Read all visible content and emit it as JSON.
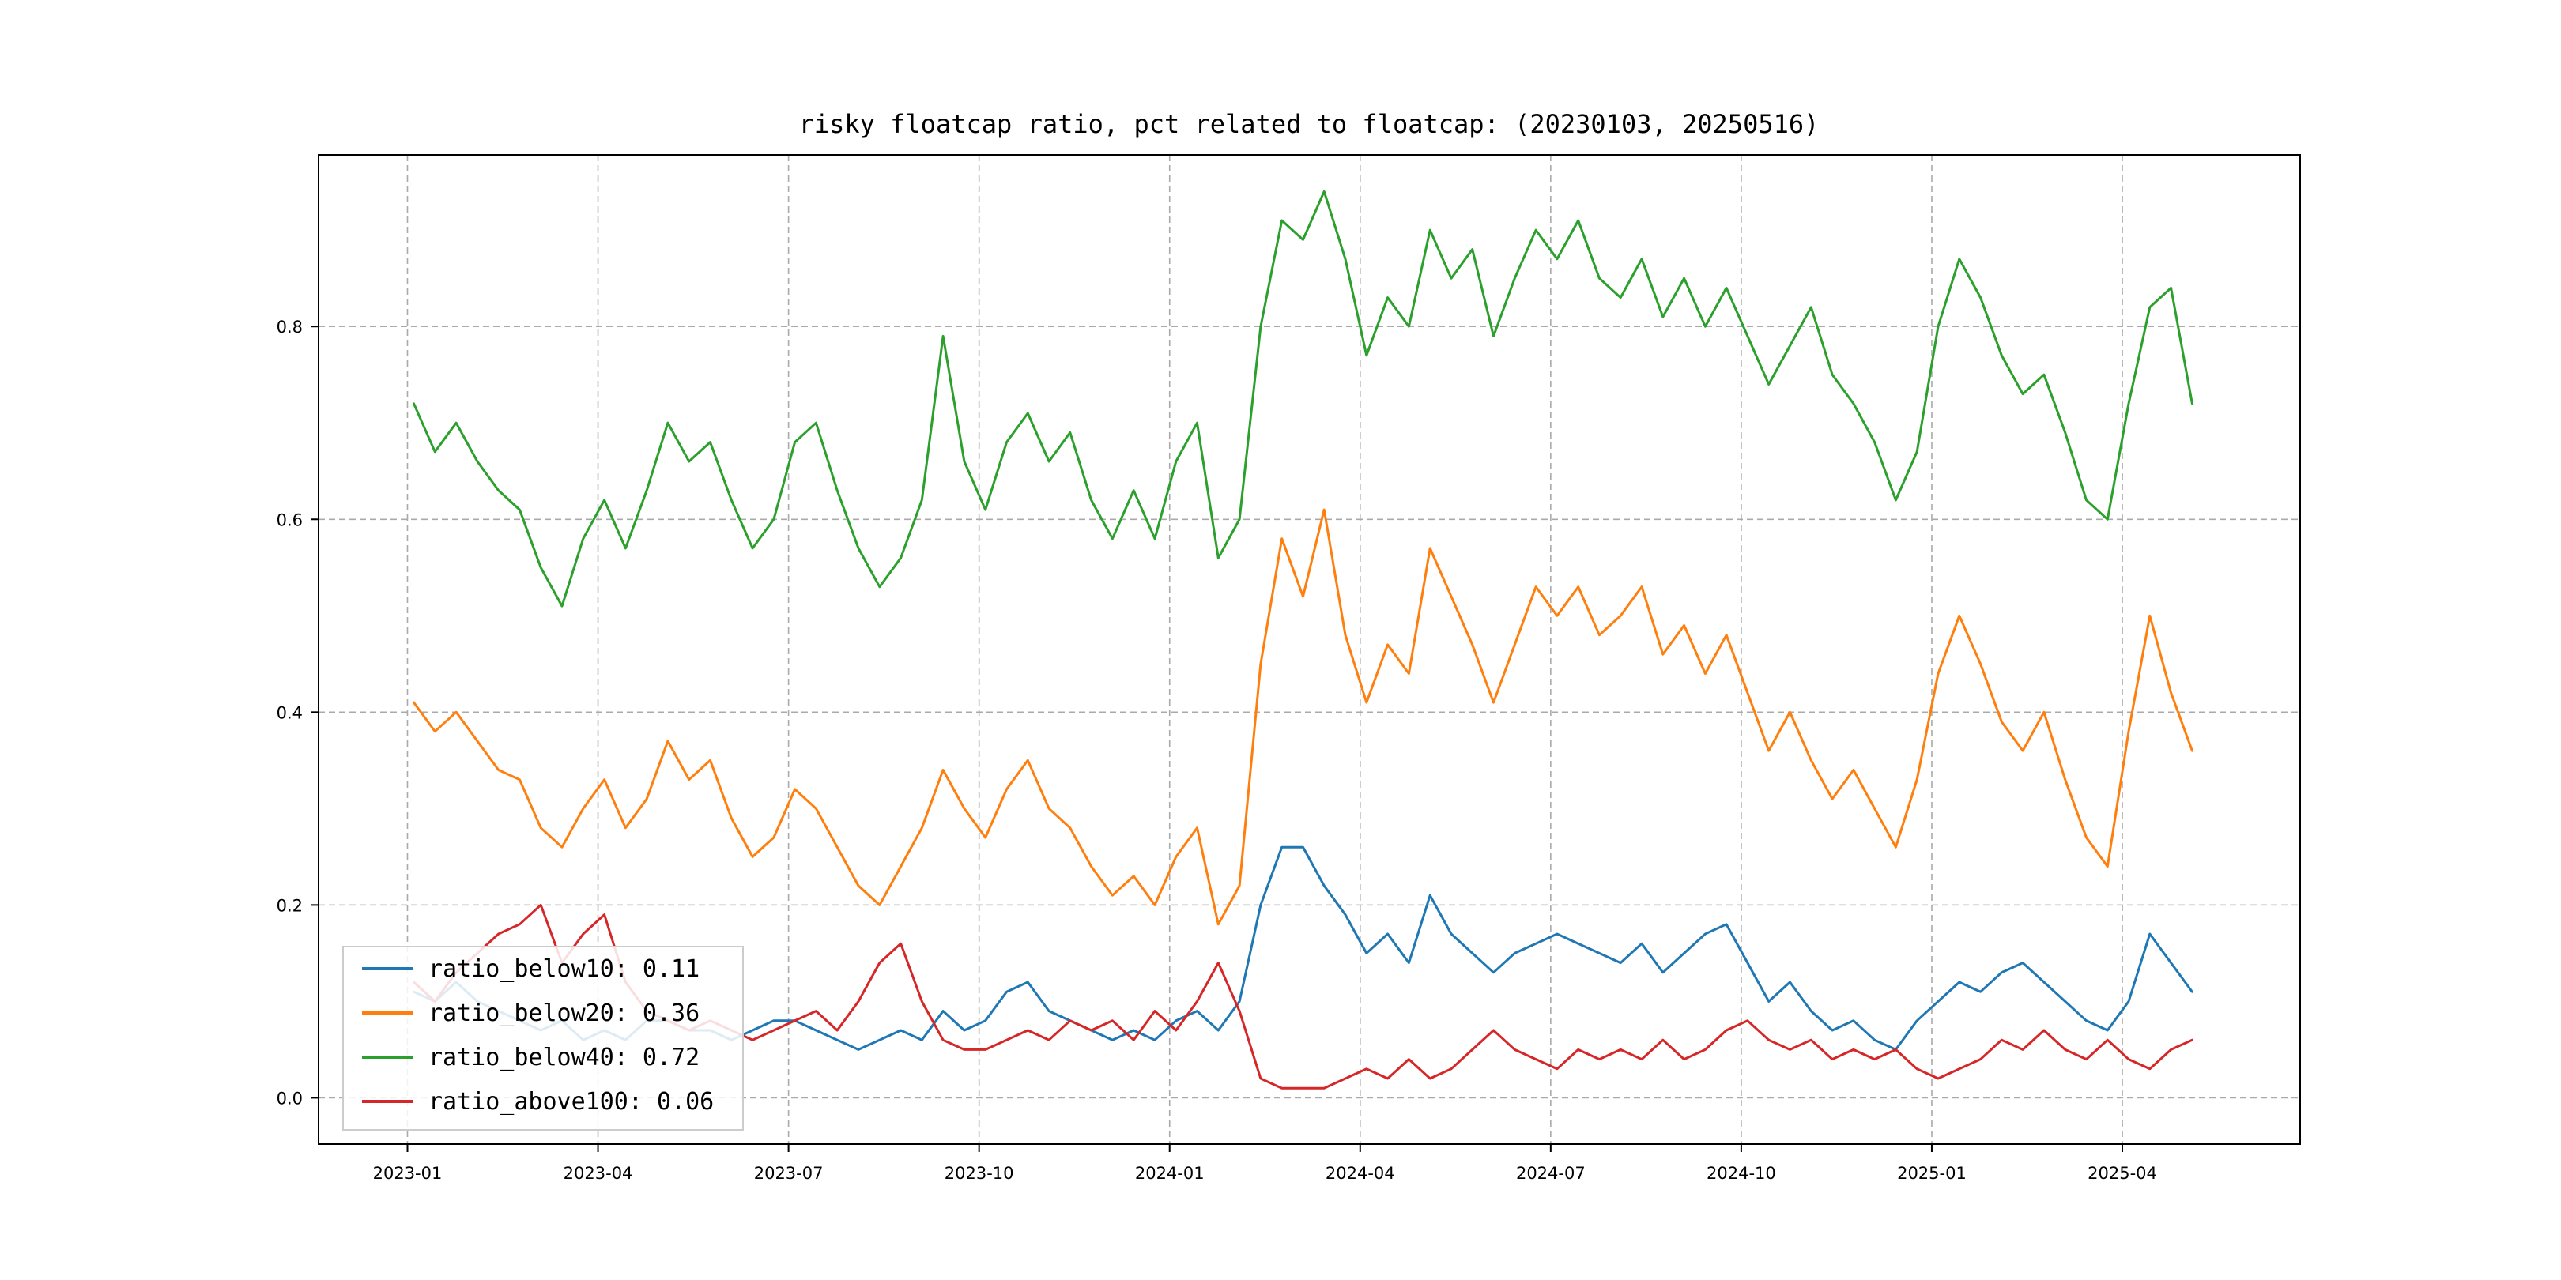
{
  "chart_data": {
    "type": "line",
    "title": "risky floatcap ratio, pct related to floatcap: (20230103, 20250516)",
    "date_range_start": "20230103",
    "date_range_end": "20250516",
    "xlabel": "",
    "ylabel": "",
    "grid": "dashed",
    "legend_position": "lower left",
    "xlim_months": [
      -1.4,
      29.8
    ],
    "ylim": [
      -0.048,
      0.978
    ],
    "x_start_month": 0.1,
    "x_step_month": 0.33333333,
    "x_ticks": [
      {
        "pos": 0,
        "label": "2023-01"
      },
      {
        "pos": 3,
        "label": "2023-04"
      },
      {
        "pos": 6,
        "label": "2023-07"
      },
      {
        "pos": 9,
        "label": "2023-10"
      },
      {
        "pos": 12,
        "label": "2024-01"
      },
      {
        "pos": 15,
        "label": "2024-04"
      },
      {
        "pos": 18,
        "label": "2024-07"
      },
      {
        "pos": 21,
        "label": "2024-10"
      },
      {
        "pos": 24,
        "label": "2025-01"
      },
      {
        "pos": 27,
        "label": "2025-04"
      }
    ],
    "y_ticks": [
      {
        "pos": 0.0,
        "label": "0.0"
      },
      {
        "pos": 0.2,
        "label": "0.2"
      },
      {
        "pos": 0.4,
        "label": "0.4"
      },
      {
        "pos": 0.6,
        "label": "0.6"
      },
      {
        "pos": 0.8,
        "label": "0.8"
      }
    ],
    "series": [
      {
        "name": "ratio_below10",
        "legend_label": "ratio_below10: 0.11",
        "last_value": 0.11,
        "color": "#1f77b4",
        "values": [
          0.11,
          0.1,
          0.12,
          0.1,
          0.09,
          0.08,
          0.07,
          0.08,
          0.06,
          0.07,
          0.06,
          0.08,
          0.08,
          0.07,
          0.07,
          0.06,
          0.07,
          0.08,
          0.08,
          0.07,
          0.06,
          0.05,
          0.06,
          0.07,
          0.06,
          0.09,
          0.07,
          0.08,
          0.11,
          0.12,
          0.09,
          0.08,
          0.07,
          0.06,
          0.07,
          0.06,
          0.08,
          0.09,
          0.07,
          0.1,
          0.2,
          0.26,
          0.26,
          0.22,
          0.19,
          0.15,
          0.17,
          0.14,
          0.21,
          0.17,
          0.15,
          0.13,
          0.15,
          0.16,
          0.17,
          0.16,
          0.15,
          0.14,
          0.16,
          0.13,
          0.15,
          0.17,
          0.18,
          0.14,
          0.1,
          0.12,
          0.09,
          0.07,
          0.08,
          0.06,
          0.05,
          0.08,
          0.1,
          0.12,
          0.11,
          0.13,
          0.14,
          0.12,
          0.1,
          0.08,
          0.07,
          0.1,
          0.17,
          0.14,
          0.11
        ]
      },
      {
        "name": "ratio_below20",
        "legend_label": "ratio_below20: 0.36",
        "last_value": 0.36,
        "color": "#ff7f0e",
        "values": [
          0.41,
          0.38,
          0.4,
          0.37,
          0.34,
          0.33,
          0.28,
          0.26,
          0.3,
          0.33,
          0.28,
          0.31,
          0.37,
          0.33,
          0.35,
          0.29,
          0.25,
          0.27,
          0.32,
          0.3,
          0.26,
          0.22,
          0.2,
          0.24,
          0.28,
          0.34,
          0.3,
          0.27,
          0.32,
          0.35,
          0.3,
          0.28,
          0.24,
          0.21,
          0.23,
          0.2,
          0.25,
          0.28,
          0.18,
          0.22,
          0.45,
          0.58,
          0.52,
          0.61,
          0.48,
          0.41,
          0.47,
          0.44,
          0.57,
          0.52,
          0.47,
          0.41,
          0.47,
          0.53,
          0.5,
          0.53,
          0.48,
          0.5,
          0.53,
          0.46,
          0.49,
          0.44,
          0.48,
          0.42,
          0.36,
          0.4,
          0.35,
          0.31,
          0.34,
          0.3,
          0.26,
          0.33,
          0.44,
          0.5,
          0.45,
          0.39,
          0.36,
          0.4,
          0.33,
          0.27,
          0.24,
          0.38,
          0.5,
          0.42,
          0.36
        ]
      },
      {
        "name": "ratio_below40",
        "legend_label": "ratio_below40: 0.72",
        "last_value": 0.72,
        "color": "#2ca02c",
        "values": [
          0.72,
          0.67,
          0.7,
          0.66,
          0.63,
          0.61,
          0.55,
          0.51,
          0.58,
          0.62,
          0.57,
          0.63,
          0.7,
          0.66,
          0.68,
          0.62,
          0.57,
          0.6,
          0.68,
          0.7,
          0.63,
          0.57,
          0.53,
          0.56,
          0.62,
          0.79,
          0.66,
          0.61,
          0.68,
          0.71,
          0.66,
          0.69,
          0.62,
          0.58,
          0.63,
          0.58,
          0.66,
          0.7,
          0.56,
          0.6,
          0.8,
          0.91,
          0.89,
          0.94,
          0.87,
          0.77,
          0.83,
          0.8,
          0.9,
          0.85,
          0.88,
          0.79,
          0.85,
          0.9,
          0.87,
          0.91,
          0.85,
          0.83,
          0.87,
          0.81,
          0.85,
          0.8,
          0.84,
          0.79,
          0.74,
          0.78,
          0.82,
          0.75,
          0.72,
          0.68,
          0.62,
          0.67,
          0.8,
          0.87,
          0.83,
          0.77,
          0.73,
          0.75,
          0.69,
          0.62,
          0.6,
          0.72,
          0.82,
          0.84,
          0.72
        ]
      },
      {
        "name": "ratio_above100",
        "legend_label": "ratio_above100: 0.06",
        "last_value": 0.06,
        "color": "#d62728",
        "values": [
          0.12,
          0.1,
          0.13,
          0.15,
          0.17,
          0.18,
          0.2,
          0.14,
          0.17,
          0.19,
          0.12,
          0.09,
          0.08,
          0.07,
          0.08,
          0.07,
          0.06,
          0.07,
          0.08,
          0.09,
          0.07,
          0.1,
          0.14,
          0.16,
          0.1,
          0.06,
          0.05,
          0.05,
          0.06,
          0.07,
          0.06,
          0.08,
          0.07,
          0.08,
          0.06,
          0.09,
          0.07,
          0.1,
          0.14,
          0.09,
          0.02,
          0.01,
          0.01,
          0.01,
          0.02,
          0.03,
          0.02,
          0.04,
          0.02,
          0.03,
          0.05,
          0.07,
          0.05,
          0.04,
          0.03,
          0.05,
          0.04,
          0.05,
          0.04,
          0.06,
          0.04,
          0.05,
          0.07,
          0.08,
          0.06,
          0.05,
          0.06,
          0.04,
          0.05,
          0.04,
          0.05,
          0.03,
          0.02,
          0.03,
          0.04,
          0.06,
          0.05,
          0.07,
          0.05,
          0.04,
          0.06,
          0.04,
          0.03,
          0.05,
          0.06
        ]
      }
    ],
    "style": {
      "grid_color": "#aaaaaa",
      "axes_border_color": "#000000",
      "legend_border_color": "#cccccc",
      "legend_bg": "rgba(255,255,255,0.85)",
      "background": "#ffffff"
    }
  }
}
